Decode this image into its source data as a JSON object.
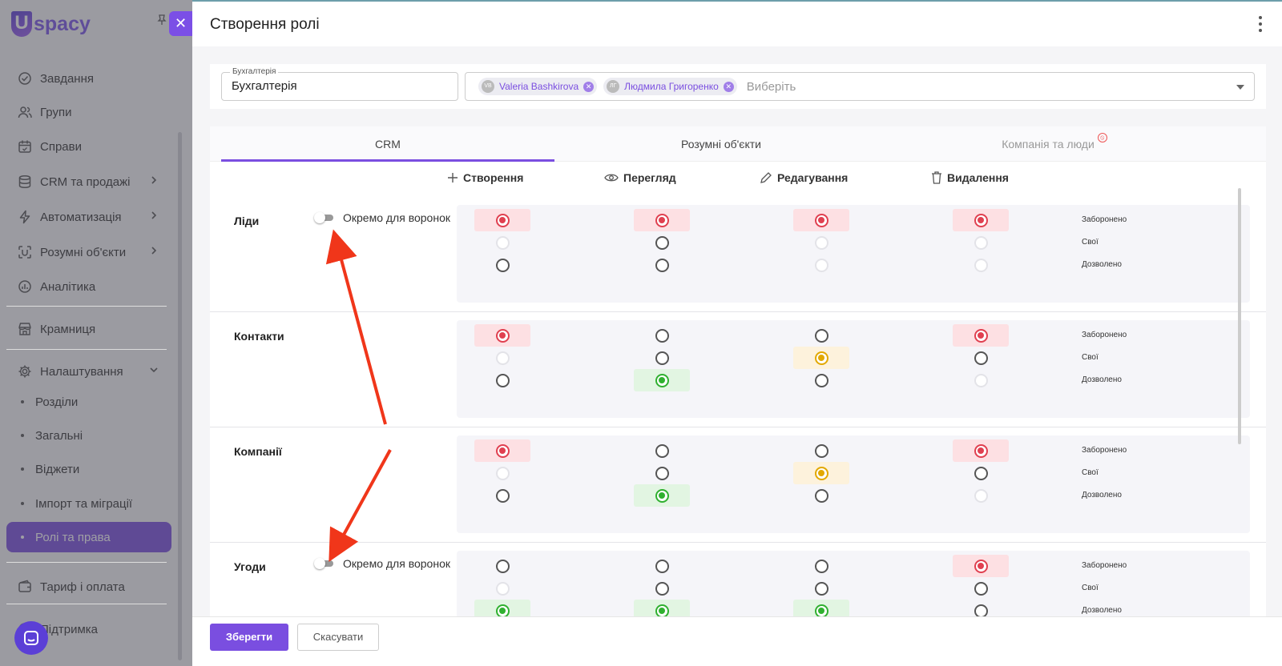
{
  "app": {
    "logo_text": "spacy",
    "logo_letter": "U"
  },
  "sidebar": {
    "items": [
      {
        "label": "Завдання",
        "icon": "check-circle-icon"
      },
      {
        "label": "Групи",
        "icon": "users-icon"
      },
      {
        "label": "Справи",
        "icon": "calendar-icon"
      },
      {
        "label": "CRM та продажі",
        "icon": "database-icon"
      },
      {
        "label": "Автоматизація",
        "icon": "lightning-icon"
      },
      {
        "label": "Розумні об'єкти",
        "icon": "smart-object-icon"
      },
      {
        "label": "Аналітика",
        "icon": "chart-icon"
      },
      {
        "label": "Крамниця",
        "icon": "store-icon"
      },
      {
        "label": "Налаштування",
        "icon": "gear-icon"
      },
      {
        "label": "Тариф і оплата",
        "icon": "wallet-icon"
      },
      {
        "label": "Підтримка",
        "icon": "support-icon"
      }
    ],
    "settings_sub": [
      "Розділи",
      "Загальні",
      "Віджети",
      "Імпорт та міграції",
      "Ролі та права"
    ]
  },
  "panel": {
    "title": "Створення ролі",
    "name_field": {
      "label": "Бухгалтерія",
      "value": "Бухгалтерія"
    },
    "users_field": {
      "chips": [
        {
          "name": "Valeria Bashkirova",
          "initials": "VB"
        },
        {
          "name": "Людмила Григоренко",
          "initials": "ЛГ"
        }
      ],
      "placeholder": "Виберіть"
    },
    "tabs": [
      {
        "label": "CRM",
        "state": "active"
      },
      {
        "label": "Розумні об'єкти",
        "state": "normal"
      },
      {
        "label": "Компанія та люди",
        "state": "disabled"
      }
    ],
    "columns": [
      "Створення",
      "Перегляд",
      "Редагування",
      "Видалення"
    ],
    "levels": [
      "Заборонено",
      "Свої",
      "Дозволено"
    ],
    "toggle_label": "Окремо для воронок",
    "sections": [
      {
        "title": "Ліди",
        "has_toggle": true,
        "selected": [
          0,
          0,
          0,
          0
        ],
        "disabled": [
          [
            false,
            true,
            false
          ],
          [
            false,
            false,
            false
          ],
          [
            false,
            true,
            true
          ],
          [
            false,
            true,
            true
          ]
        ]
      },
      {
        "title": "Контакти",
        "has_toggle": false,
        "selected": [
          0,
          2,
          1,
          0
        ],
        "disabled": [
          [
            false,
            true,
            false
          ],
          [
            false,
            false,
            false
          ],
          [
            false,
            false,
            false
          ],
          [
            false,
            false,
            true
          ]
        ]
      },
      {
        "title": "Компанії",
        "has_toggle": false,
        "selected": [
          0,
          2,
          1,
          0
        ],
        "disabled": [
          [
            false,
            true,
            false
          ],
          [
            false,
            false,
            false
          ],
          [
            false,
            false,
            false
          ],
          [
            false,
            false,
            true
          ]
        ]
      },
      {
        "title": "Угоди",
        "has_toggle": true,
        "selected": [
          2,
          2,
          2,
          0
        ],
        "disabled": [
          [
            false,
            true,
            false
          ],
          [
            false,
            false,
            false
          ],
          [
            false,
            false,
            false
          ],
          [
            false,
            false,
            false
          ]
        ]
      }
    ],
    "footer": {
      "save": "Зберегти",
      "cancel": "Скасувати"
    },
    "colors": {
      "accent": "#7a4ee0",
      "forbidden": "#e04050",
      "own": "#e2a800",
      "allowed": "#30b030",
      "annotation": "#f0361a"
    }
  }
}
